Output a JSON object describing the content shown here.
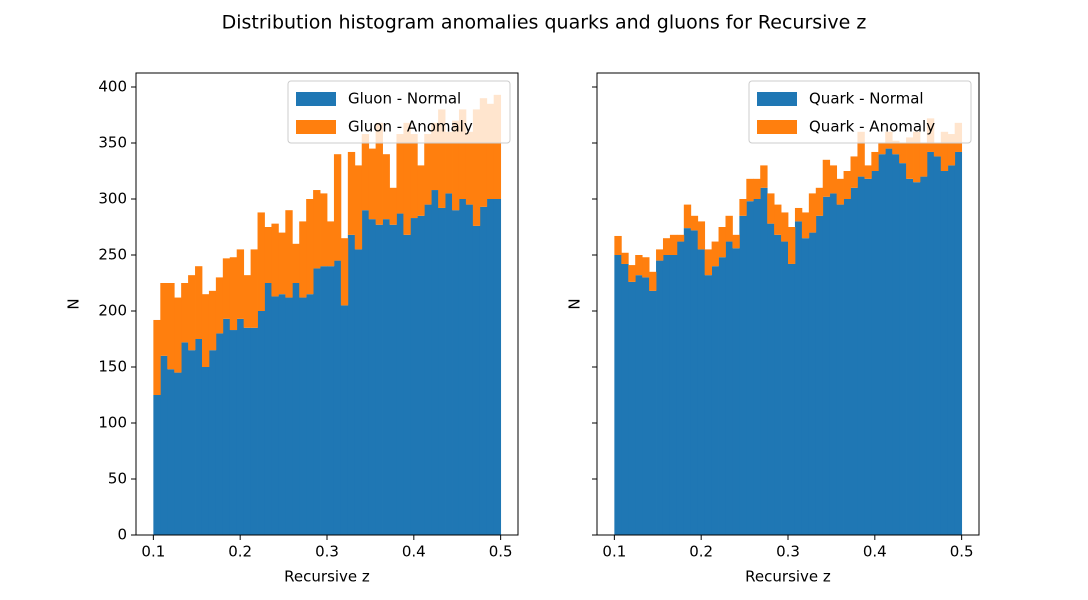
{
  "title": "Distribution histogram anomalies quarks and gluons for Recursive z",
  "chart_data": [
    {
      "type": "histogram",
      "stacked": true,
      "xlabel": "Recursive z",
      "ylabel": "N",
      "xlim": [
        0.08,
        0.52
      ],
      "ylim": [
        0,
        412.5
      ],
      "xticks": [
        0.1,
        0.2,
        0.3,
        0.4,
        0.5
      ],
      "yticks": [
        0,
        50,
        100,
        150,
        200,
        250,
        300,
        350,
        400
      ],
      "show_ytick_labels": true,
      "legend": "upper right",
      "bins": [
        0.1,
        0.108,
        0.116,
        0.124,
        0.132,
        0.14,
        0.148,
        0.156,
        0.164,
        0.172,
        0.18,
        0.188,
        0.196,
        0.204,
        0.212,
        0.22,
        0.228,
        0.236,
        0.244,
        0.252,
        0.26,
        0.268,
        0.276,
        0.284,
        0.292,
        0.3,
        0.308,
        0.316,
        0.324,
        0.332,
        0.34,
        0.348,
        0.356,
        0.364,
        0.372,
        0.38,
        0.388,
        0.396,
        0.404,
        0.412,
        0.42,
        0.428,
        0.436,
        0.444,
        0.452,
        0.46,
        0.468,
        0.476,
        0.484,
        0.492,
        0.5
      ],
      "series": [
        {
          "name": "Gluon - Normal",
          "color": "#1f77b4",
          "values": [
            125,
            160,
            148,
            145,
            172,
            165,
            175,
            150,
            165,
            180,
            193,
            183,
            193,
            185,
            185,
            200,
            225,
            213,
            215,
            212,
            225,
            212,
            215,
            238,
            240,
            240,
            245,
            205,
            268,
            255,
            290,
            282,
            277,
            282,
            277,
            287,
            268,
            283,
            285,
            295,
            308,
            292,
            305,
            290,
            300,
            295,
            276,
            293,
            300,
            300
          ]
        },
        {
          "name": "Gluon - Anomaly",
          "color": "#ff7f0e",
          "values": [
            67,
            65,
            77,
            67,
            53,
            67,
            65,
            65,
            53,
            50,
            54,
            65,
            62,
            47,
            70,
            88,
            50,
            65,
            55,
            78,
            35,
            68,
            85,
            70,
            65,
            40,
            95,
            60,
            74,
            75,
            68,
            63,
            91,
            58,
            33,
            71,
            100,
            75,
            45,
            63,
            60,
            88,
            55,
            80,
            80,
            65,
            104,
            97,
            85,
            93
          ]
        }
      ]
    },
    {
      "type": "histogram",
      "stacked": true,
      "xlabel": "Recursive z",
      "ylabel": "N",
      "xlim": [
        0.08,
        0.52
      ],
      "ylim": [
        0,
        412.5
      ],
      "xticks": [
        0.1,
        0.2,
        0.3,
        0.4,
        0.5
      ],
      "yticks": [
        0,
        50,
        100,
        150,
        200,
        250,
        300,
        350,
        400
      ],
      "show_ytick_labels": false,
      "legend": "upper right",
      "bins": [
        0.1,
        0.108,
        0.116,
        0.124,
        0.132,
        0.14,
        0.148,
        0.156,
        0.164,
        0.172,
        0.18,
        0.188,
        0.196,
        0.204,
        0.212,
        0.22,
        0.228,
        0.236,
        0.244,
        0.252,
        0.26,
        0.268,
        0.276,
        0.284,
        0.292,
        0.3,
        0.308,
        0.316,
        0.324,
        0.332,
        0.34,
        0.348,
        0.356,
        0.364,
        0.372,
        0.38,
        0.388,
        0.396,
        0.404,
        0.412,
        0.42,
        0.428,
        0.436,
        0.444,
        0.452,
        0.46,
        0.468,
        0.476,
        0.484,
        0.492,
        0.5
      ],
      "series": [
        {
          "name": "Quark - Normal",
          "color": "#1f77b4",
          "values": [
            250,
            242,
            226,
            232,
            230,
            218,
            245,
            250,
            250,
            262,
            274,
            272,
            255,
            232,
            240,
            248,
            262,
            256,
            285,
            298,
            300,
            310,
            278,
            268,
            262,
            242,
            280,
            265,
            270,
            285,
            302,
            305,
            295,
            300,
            310,
            320,
            318,
            325,
            340,
            345,
            340,
            332,
            318,
            315,
            320,
            342,
            338,
            325,
            330,
            342
          ]
        },
        {
          "name": "Quark - Anomaly",
          "color": "#ff7f0e",
          "values": [
            17,
            10,
            15,
            18,
            18,
            17,
            10,
            15,
            18,
            6,
            21,
            13,
            25,
            23,
            22,
            27,
            23,
            12,
            15,
            20,
            18,
            20,
            27,
            27,
            26,
            33,
            12,
            23,
            35,
            25,
            33,
            25,
            23,
            25,
            28,
            40,
            12,
            17,
            10,
            15,
            12,
            18,
            37,
            45,
            30,
            30,
            12,
            35,
            28,
            26
          ]
        }
      ]
    }
  ]
}
